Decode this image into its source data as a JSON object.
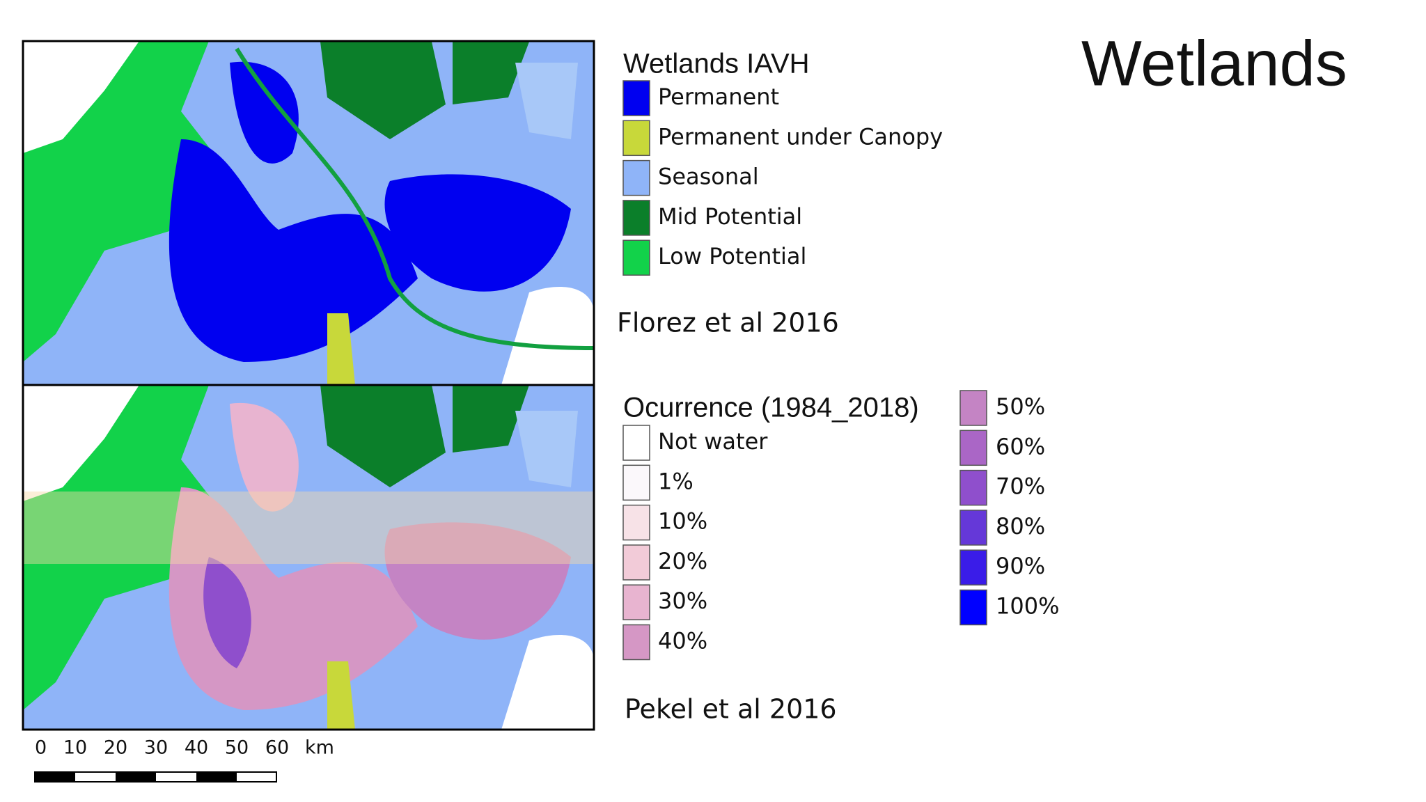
{
  "title": "Wetlands",
  "legend_iavh": {
    "title": "Wetlands IAVH",
    "items": [
      {
        "label": "Permanent",
        "color": "#0000f0"
      },
      {
        "label": "Permanent under Canopy",
        "color": "#c8d83a"
      },
      {
        "label": "Seasonal",
        "color": "#8fb4f8"
      },
      {
        "label": "Mid Potential",
        "color": "#0b7f2a"
      },
      {
        "label": "Low Potential",
        "color": "#12d24a"
      }
    ],
    "source": "Florez et al 2016"
  },
  "legend_occurrence": {
    "title": "Ocurrence (1984_2018)",
    "items": [
      {
        "label": "Not water",
        "color": "#ffffff"
      },
      {
        "label": "1%",
        "color": "#fbf8fb"
      },
      {
        "label": "10%",
        "color": "#f7e2e7"
      },
      {
        "label": "20%",
        "color": "#f2cbd8"
      },
      {
        "label": "30%",
        "color": "#e8b4d0"
      },
      {
        "label": "40%",
        "color": "#d597c5"
      },
      {
        "label": "50%",
        "color": "#c484c4"
      },
      {
        "label": "60%",
        "color": "#aa66c6"
      },
      {
        "label": "70%",
        "color": "#8f4fcc"
      },
      {
        "label": "80%",
        "color": "#6538d8"
      },
      {
        "label": "90%",
        "color": "#3a1ce8"
      },
      {
        "label": "100%",
        "color": "#0000ff"
      }
    ],
    "source": "Pekel et al 2016"
  },
  "scale_bar": {
    "labels": [
      "0",
      "10",
      "20",
      "30",
      "40",
      "50",
      "60"
    ],
    "unit": "km"
  }
}
